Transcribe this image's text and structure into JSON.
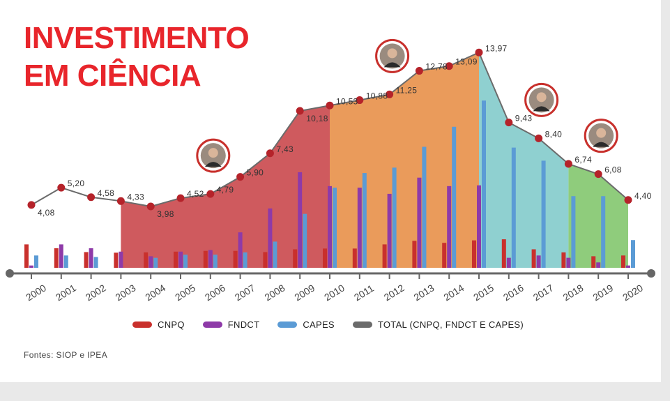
{
  "title_lines": [
    "INVESTIMENTO",
    "EM CIÊNCIA"
  ],
  "source": "Fontes: SIOP e IPEA",
  "chart_data": {
    "type": "bar",
    "years": [
      "2000",
      "2001",
      "2002",
      "2003",
      "2004",
      "2005",
      "2006",
      "2007",
      "2008",
      "2009",
      "2010",
      "2011",
      "2012",
      "2013",
      "2014",
      "2015",
      "2016",
      "2017",
      "2018",
      "2019",
      "2020"
    ],
    "total": {
      "name": "TOTAL (CNPQ, FNDCT E CAPES)",
      "values": [
        4.08,
        5.2,
        4.58,
        4.33,
        3.98,
        4.52,
        4.79,
        5.9,
        7.43,
        10.18,
        10.53,
        10.88,
        11.25,
        12.78,
        13.09,
        13.97,
        9.43,
        8.4,
        6.74,
        6.08,
        4.4
      ],
      "labels": [
        "4,08",
        "5,20",
        "4,58",
        "4,33",
        "3,98",
        "4,52",
        "4,79",
        "5,90",
        "7,43",
        "10,18",
        "10,53",
        "10,88",
        "11,25",
        "12,78",
        "13,09",
        "13,97",
        "9,43",
        "8,40",
        "6,74",
        "6,08",
        "4,40"
      ]
    },
    "series": [
      {
        "name": "CNPQ",
        "values": [
          1.52,
          1.27,
          1.02,
          0.98,
          1.0,
          1.05,
          1.1,
          1.1,
          1.02,
          1.2,
          1.25,
          1.25,
          1.52,
          1.75,
          1.62,
          1.78,
          1.85,
          1.2,
          1.0,
          0.75,
          0.8
        ]
      },
      {
        "name": "FNDCT",
        "values": [
          0.15,
          1.52,
          1.27,
          1.05,
          0.75,
          1.05,
          1.15,
          2.3,
          3.85,
          6.2,
          5.3,
          5.2,
          4.8,
          5.85,
          5.3,
          5.35,
          0.65,
          0.8,
          0.65,
          0.35,
          0.15
        ]
      },
      {
        "name": "CAPES",
        "values": [
          0.8,
          0.8,
          0.7,
          0.0,
          0.65,
          0.85,
          0.85,
          1.0,
          1.7,
          3.5,
          5.2,
          6.15,
          6.5,
          7.85,
          9.15,
          10.85,
          7.8,
          6.95,
          4.65,
          4.65,
          1.8
        ]
      }
    ],
    "periods": [
      {
        "from": "2003",
        "to": "2010",
        "color": "#cf5a5e"
      },
      {
        "from": "2010",
        "to": "2015",
        "color": "#ea9b5b"
      },
      {
        "from": "2015",
        "to": "2018",
        "color": "#8fd0d0"
      },
      {
        "from": "2018",
        "to": "2020",
        "color": "#8fcc7c"
      }
    ],
    "portrait_years": [
      "2006",
      "2012",
      "2017",
      "2019"
    ],
    "ylim": [
      0,
      16
    ],
    "colors": {
      "CNPQ": "#c9302c",
      "FNDCT": "#8e3aa8",
      "CAPES": "#5b9bd5",
      "TOTAL": "#6b6b6b",
      "point": "#b5232a",
      "axis": "#666666"
    },
    "legend_position": "bottom"
  }
}
